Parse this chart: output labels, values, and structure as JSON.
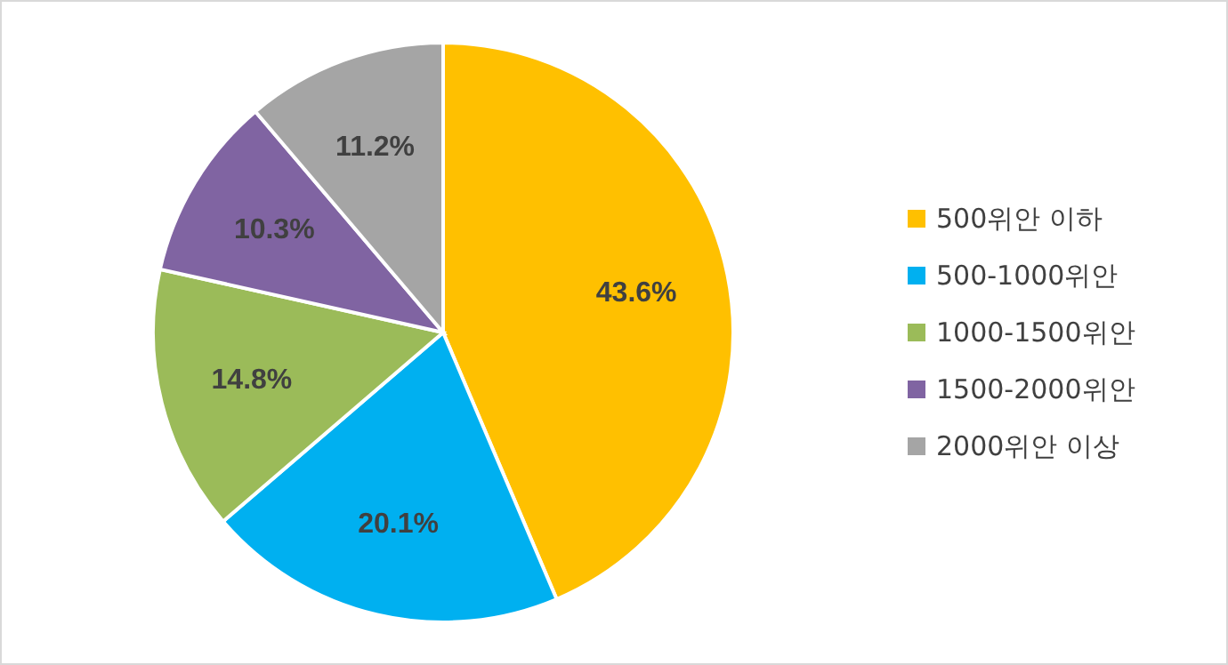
{
  "chart_data": {
    "type": "pie",
    "categories": [
      "500위안 이하",
      "500-1000위안",
      "1000-1500위안",
      "1500-2000위안",
      "2000위안 이상"
    ],
    "values": [
      43.6,
      20.1,
      14.8,
      10.3,
      11.2
    ],
    "colors": [
      "#ffc000",
      "#00b0f0",
      "#9bbb59",
      "#8064a2",
      "#a5a5a5"
    ],
    "value_labels": [
      "43.6%",
      "20.1%",
      "14.8%",
      "10.3%",
      "11.2%"
    ],
    "legend": "right"
  }
}
